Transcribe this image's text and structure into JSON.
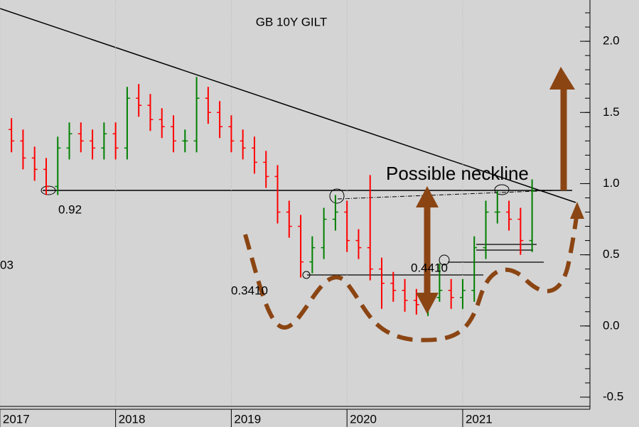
{
  "chart_data": {
    "type": "ohlc",
    "title": "GB 10Y GILT",
    "annotations": [
      "Possible neckline",
      "0.92",
      "0.3410",
      "0.4410",
      "03"
    ],
    "x": [
      2017.1,
      2017.2,
      2017.3,
      2017.4,
      2017.5,
      2017.6,
      2017.7,
      2017.8,
      2017.9,
      2018.0,
      2018.1,
      2018.2,
      2018.3,
      2018.4,
      2018.5,
      2018.6,
      2018.7,
      2018.8,
      2018.9,
      2019.0,
      2019.1,
      2019.2,
      2019.3,
      2019.4,
      2019.5,
      2019.6,
      2019.7,
      2019.8,
      2019.9,
      2020.0,
      2020.1,
      2020.2,
      2020.3,
      2020.4,
      2020.5,
      2020.6,
      2020.7,
      2020.8,
      2020.9,
      2021.0,
      2021.1,
      2021.2,
      2021.3,
      2021.4,
      2021.5,
      2021.6
    ],
    "open": [
      1.38,
      1.3,
      1.18,
      1.1,
      0.98,
      1.25,
      1.35,
      1.3,
      1.25,
      1.35,
      1.25,
      1.6,
      1.55,
      1.45,
      1.4,
      1.3,
      1.3,
      1.6,
      1.5,
      1.4,
      1.3,
      1.25,
      1.15,
      1.05,
      0.8,
      0.7,
      0.45,
      0.55,
      0.75,
      0.8,
      0.6,
      0.55,
      0.4,
      0.3,
      0.25,
      0.18,
      0.15,
      0.2,
      0.25,
      0.2,
      0.25,
      0.55,
      0.8,
      0.8,
      0.75,
      0.6
    ],
    "high": [
      1.46,
      1.38,
      1.26,
      1.18,
      1.33,
      1.43,
      1.43,
      1.38,
      1.43,
      1.43,
      1.68,
      1.7,
      1.63,
      1.53,
      1.48,
      1.38,
      1.75,
      1.68,
      1.58,
      1.48,
      1.38,
      1.33,
      1.23,
      1.13,
      0.88,
      0.78,
      0.63,
      0.83,
      0.92,
      0.88,
      0.68,
      1.06,
      0.48,
      0.38,
      0.33,
      0.26,
      0.28,
      0.44,
      0.33,
      0.33,
      0.63,
      0.88,
      0.95,
      0.88,
      0.83,
      1.03
    ],
    "low": [
      1.22,
      1.1,
      1.02,
      0.92,
      0.92,
      1.17,
      1.22,
      1.17,
      1.17,
      1.17,
      1.17,
      1.47,
      1.37,
      1.32,
      1.22,
      1.22,
      1.22,
      1.42,
      1.32,
      1.22,
      1.17,
      1.07,
      0.97,
      0.72,
      0.62,
      0.34,
      0.37,
      0.47,
      0.67,
      0.52,
      0.47,
      0.32,
      0.12,
      0.17,
      0.1,
      0.08,
      0.07,
      0.17,
      0.12,
      0.12,
      0.17,
      0.47,
      0.72,
      0.67,
      0.5,
      0.52
    ],
    "close": [
      1.3,
      1.18,
      1.1,
      0.98,
      1.25,
      1.35,
      1.3,
      1.25,
      1.35,
      1.25,
      1.6,
      1.55,
      1.45,
      1.4,
      1.3,
      1.3,
      1.6,
      1.5,
      1.4,
      1.3,
      1.25,
      1.15,
      1.05,
      0.8,
      0.7,
      0.45,
      0.55,
      0.75,
      0.8,
      0.6,
      0.55,
      0.4,
      0.3,
      0.25,
      0.18,
      0.15,
      0.2,
      0.25,
      0.2,
      0.25,
      0.55,
      0.8,
      0.8,
      0.75,
      0.6,
      0.95
    ],
    "up_color": "#008000",
    "down_color": "#ff0000",
    "xlim": [
      2017.05,
      2022.1
    ],
    "xticks": [
      2017,
      2018,
      2019,
      2020,
      2021
    ],
    "ylim": [
      -0.58,
      2.29
    ],
    "yticks": [
      {
        "value": -0.5,
        "label": "-0.5"
      },
      {
        "value": 0,
        "label": "0.0"
      },
      0.5,
      {
        "value": 1,
        "label": "1.0"
      },
      {
        "value": 1.5,
        "label": "1.5"
      },
      {
        "value": 2,
        "label": "2.0"
      }
    ],
    "grid": true
  }
}
